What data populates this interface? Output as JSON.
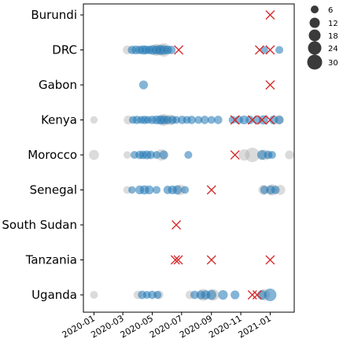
{
  "chart_data": {
    "type": "scatter",
    "title": "",
    "xlabel": "",
    "ylabel": "",
    "x_ticks": [
      "2020-01",
      "2020-03",
      "2020-05",
      "2020-07",
      "2020-09",
      "2020-11",
      "2021-01"
    ],
    "x_range": [
      "2019-12-10",
      "2021-02-20"
    ],
    "categories": [
      "Burundi",
      "DRC",
      "Gabon",
      "Kenya",
      "Morocco",
      "Senegal",
      "South Sudan",
      "Tanzania",
      "Uganda"
    ],
    "size_legend": [
      6,
      12,
      18,
      24,
      30
    ],
    "colors": {
      "blue": "#1f77b4",
      "grey": "#b0b0b0",
      "cross": "#d62728"
    },
    "series": [
      {
        "country": "Burundi",
        "crosses": [
          "2021-01-01"
        ],
        "grey": [],
        "blue": []
      },
      {
        "country": "DRC",
        "crosses": [
          "2020-06-25",
          "2020-12-10",
          "2021-01-01"
        ],
        "grey": [
          {
            "x": "2020-03-10",
            "s": 9
          },
          {
            "x": "2020-05-10",
            "s": 18
          },
          {
            "x": "2020-05-25",
            "s": 24
          }
        ],
        "blue": [
          {
            "x": "2020-03-20",
            "s": 8
          },
          {
            "x": "2020-03-28",
            "s": 9
          },
          {
            "x": "2020-04-05",
            "s": 8
          },
          {
            "x": "2020-04-12",
            "s": 10
          },
          {
            "x": "2020-04-18",
            "s": 9
          },
          {
            "x": "2020-04-25",
            "s": 8
          },
          {
            "x": "2020-05-02",
            "s": 11
          },
          {
            "x": "2020-05-10",
            "s": 10
          },
          {
            "x": "2020-05-18",
            "s": 12
          },
          {
            "x": "2020-05-25",
            "s": 11
          },
          {
            "x": "2020-06-02",
            "s": 9
          },
          {
            "x": "2020-06-10",
            "s": 8
          },
          {
            "x": "2020-12-20",
            "s": 6
          },
          {
            "x": "2021-01-20",
            "s": 7
          }
        ]
      },
      {
        "country": "Gabon",
        "crosses": [
          "2021-01-01"
        ],
        "grey": [],
        "blue": [
          {
            "x": "2020-04-13",
            "s": 9
          }
        ]
      },
      {
        "country": "Kenya",
        "crosses": [
          "2020-10-20",
          "2020-11-25",
          "2020-12-15",
          "2021-01-01"
        ],
        "grey": [
          {
            "x": "2020-01-01",
            "s": 6
          },
          {
            "x": "2020-03-12",
            "s": 9
          },
          {
            "x": "2020-05-25",
            "s": 18
          },
          {
            "x": "2020-06-08",
            "s": 14
          },
          {
            "x": "2021-01-20",
            "s": 10
          }
        ],
        "blue": [
          {
            "x": "2020-03-22",
            "s": 7
          },
          {
            "x": "2020-03-30",
            "s": 8
          },
          {
            "x": "2020-04-08",
            "s": 7
          },
          {
            "x": "2020-04-15",
            "s": 8
          },
          {
            "x": "2020-04-22",
            "s": 7
          },
          {
            "x": "2020-05-01",
            "s": 8
          },
          {
            "x": "2020-05-10",
            "s": 9
          },
          {
            "x": "2020-05-18",
            "s": 10
          },
          {
            "x": "2020-05-25",
            "s": 9
          },
          {
            "x": "2020-06-02",
            "s": 8
          },
          {
            "x": "2020-06-12",
            "s": 8
          },
          {
            "x": "2020-06-20",
            "s": 7
          },
          {
            "x": "2020-07-02",
            "s": 8
          },
          {
            "x": "2020-07-12",
            "s": 7
          },
          {
            "x": "2020-07-22",
            "s": 8
          },
          {
            "x": "2020-08-05",
            "s": 7
          },
          {
            "x": "2020-08-18",
            "s": 8
          },
          {
            "x": "2020-09-01",
            "s": 7
          },
          {
            "x": "2020-09-15",
            "s": 8
          },
          {
            "x": "2020-10-15",
            "s": 7
          },
          {
            "x": "2020-10-28",
            "s": 8
          },
          {
            "x": "2020-11-08",
            "s": 9
          },
          {
            "x": "2020-11-20",
            "s": 8
          },
          {
            "x": "2020-12-05",
            "s": 9
          },
          {
            "x": "2020-12-18",
            "s": 10
          },
          {
            "x": "2021-01-08",
            "s": 9
          },
          {
            "x": "2021-01-20",
            "s": 8
          }
        ]
      },
      {
        "country": "Morocco",
        "crosses": [
          "2020-10-20"
        ],
        "grey": [
          {
            "x": "2020-01-01",
            "s": 12
          },
          {
            "x": "2020-03-10",
            "s": 6
          },
          {
            "x": "2020-05-20",
            "s": 16
          },
          {
            "x": "2020-11-08",
            "s": 16
          },
          {
            "x": "2020-11-25",
            "s": 28
          },
          {
            "x": "2020-12-20",
            "s": 14
          },
          {
            "x": "2021-02-10",
            "s": 9
          }
        ],
        "blue": [
          {
            "x": "2020-03-25",
            "s": 7
          },
          {
            "x": "2020-04-05",
            "s": 8
          },
          {
            "x": "2020-04-12",
            "s": 8
          },
          {
            "x": "2020-04-20",
            "s": 9
          },
          {
            "x": "2020-04-28",
            "s": 8
          },
          {
            "x": "2020-05-10",
            "s": 7
          },
          {
            "x": "2020-05-25",
            "s": 9
          },
          {
            "x": "2020-07-15",
            "s": 7
          },
          {
            "x": "2020-12-15",
            "s": 11
          },
          {
            "x": "2020-12-28",
            "s": 8
          },
          {
            "x": "2021-01-05",
            "s": 7
          }
        ]
      },
      {
        "country": "Senegal",
        "crosses": [
          "2020-09-01"
        ],
        "grey": [
          {
            "x": "2020-03-10",
            "s": 7
          },
          {
            "x": "2020-06-28",
            "s": 14
          },
          {
            "x": "2020-12-18",
            "s": 12
          },
          {
            "x": "2021-01-05",
            "s": 16
          },
          {
            "x": "2021-01-22",
            "s": 12
          }
        ],
        "blue": [
          {
            "x": "2020-03-20",
            "s": 6
          },
          {
            "x": "2020-04-05",
            "s": 9
          },
          {
            "x": "2020-04-15",
            "s": 10
          },
          {
            "x": "2020-04-25",
            "s": 9
          },
          {
            "x": "2020-05-10",
            "s": 7
          },
          {
            "x": "2020-06-02",
            "s": 8
          },
          {
            "x": "2020-06-12",
            "s": 9
          },
          {
            "x": "2020-06-22",
            "s": 10
          },
          {
            "x": "2020-07-08",
            "s": 7
          },
          {
            "x": "2020-12-20",
            "s": 8
          },
          {
            "x": "2021-01-02",
            "s": 9
          },
          {
            "x": "2021-01-12",
            "s": 8
          }
        ]
      },
      {
        "country": "South Sudan",
        "crosses": [
          "2020-06-20"
        ],
        "grey": [],
        "blue": []
      },
      {
        "country": "Tanzania",
        "crosses": [
          "2020-06-18",
          "2020-06-24",
          "2020-09-01",
          "2021-01-01"
        ],
        "grey": [],
        "blue": []
      },
      {
        "country": "Uganda",
        "crosses": [
          "2020-11-25",
          "2020-12-05"
        ],
        "grey": [
          {
            "x": "2020-01-01",
            "s": 7
          },
          {
            "x": "2020-04-01",
            "s": 8
          },
          {
            "x": "2020-05-15",
            "s": 9
          },
          {
            "x": "2020-07-18",
            "s": 8
          },
          {
            "x": "2020-08-15",
            "s": 18
          },
          {
            "x": "2020-09-05",
            "s": 16
          },
          {
            "x": "2020-12-20",
            "s": 16
          }
        ],
        "blue": [
          {
            "x": "2020-04-10",
            "s": 8
          },
          {
            "x": "2020-04-20",
            "s": 7
          },
          {
            "x": "2020-05-01",
            "s": 8
          },
          {
            "x": "2020-05-12",
            "s": 7
          },
          {
            "x": "2020-07-28",
            "s": 8
          },
          {
            "x": "2020-08-10",
            "s": 9
          },
          {
            "x": "2020-08-20",
            "s": 10
          },
          {
            "x": "2020-09-01",
            "s": 12
          },
          {
            "x": "2020-09-25",
            "s": 11
          },
          {
            "x": "2020-10-20",
            "s": 9
          },
          {
            "x": "2020-12-15",
            "s": 11
          },
          {
            "x": "2021-01-01",
            "s": 20
          }
        ]
      }
    ]
  }
}
